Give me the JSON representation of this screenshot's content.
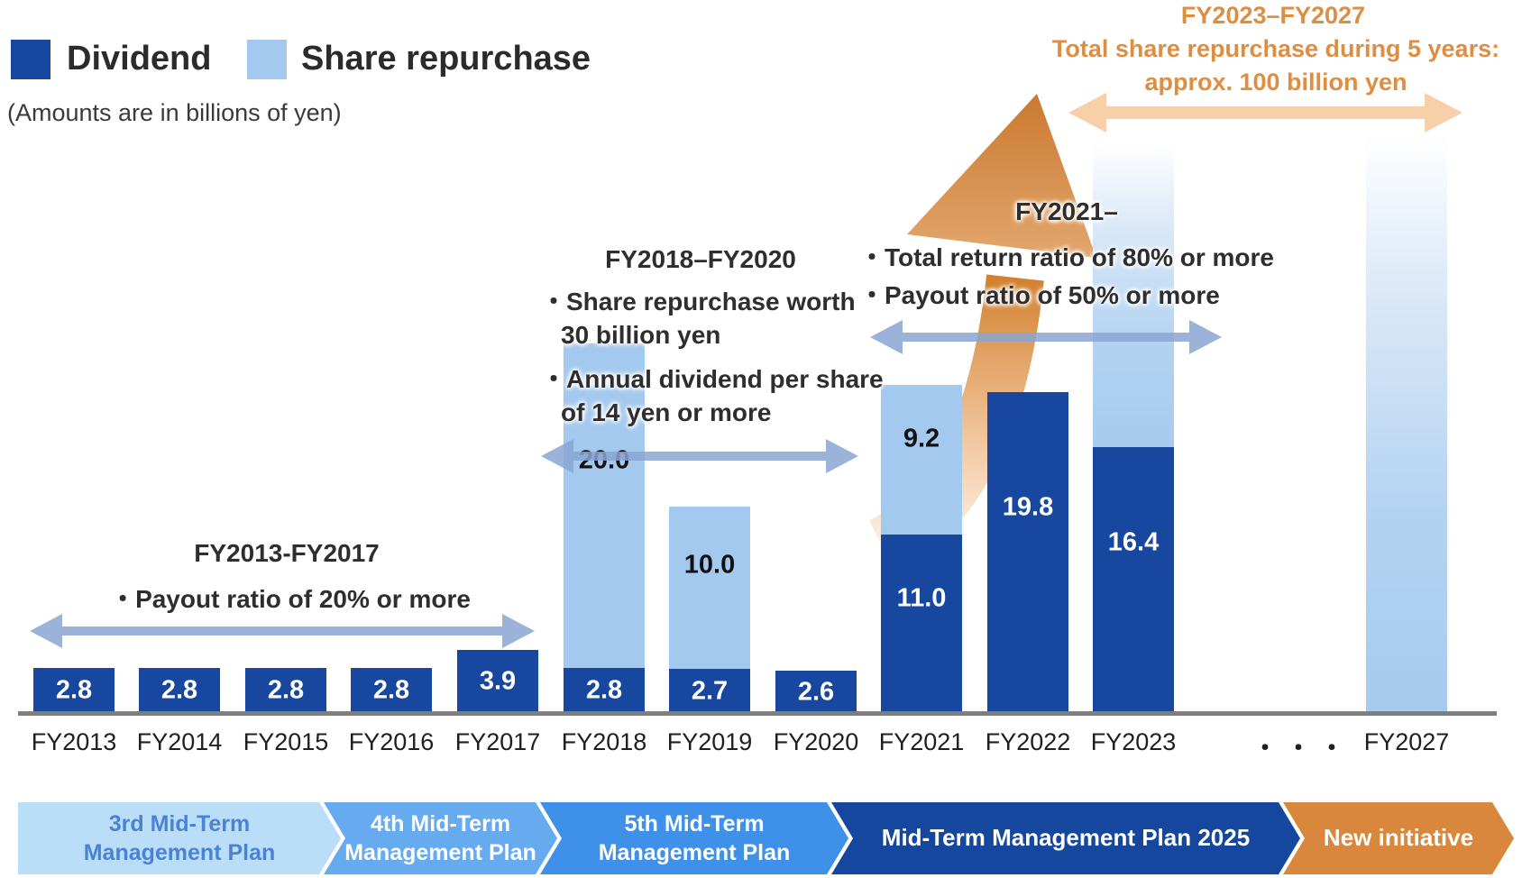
{
  "legend": {
    "items": [
      {
        "label": "Dividend",
        "color": "#17479f"
      },
      {
        "label": "Share repurchase",
        "color": "#a4c9ee"
      }
    ]
  },
  "note": "(Amounts are in billions of yen)",
  "callouts": {
    "fy2023_27": {
      "color": "#dd8e41",
      "lines": [
        "FY2023–FY2027",
        "Total share repurchase during 5 years:",
        "approx. 100 billion yen"
      ]
    },
    "fy2013_17": {
      "title": "FY2013-FY2017",
      "bullets": [
        "・Payout ratio of 20% or more"
      ]
    },
    "fy2018_20": {
      "title": "FY2018–FY2020",
      "bullets": [
        "・Share repurchase worth",
        "30 billion yen",
        "・Annual dividend per share",
        "of 14 yen or more"
      ]
    },
    "fy2021": {
      "title": "FY2021–",
      "bullets": [
        "・Total return ratio of 80% or more",
        "・Payout ratio of 50% or more"
      ]
    }
  },
  "chart_data": {
    "type": "bar",
    "stacked": true,
    "unit": "billions of yen",
    "categories": [
      "FY2013",
      "FY2014",
      "FY2015",
      "FY2016",
      "FY2017",
      "FY2018",
      "FY2019",
      "FY2020",
      "FY2021",
      "FY2022",
      "FY2023",
      "・・・",
      "FY2027"
    ],
    "series": [
      {
        "name": "Dividend",
        "color": "#17479f",
        "label_color": "#ffffff",
        "values": [
          2.8,
          2.8,
          2.8,
          2.8,
          3.9,
          2.8,
          2.7,
          2.6,
          11.0,
          19.8,
          16.4,
          null,
          null
        ]
      },
      {
        "name": "Share repurchase",
        "color": "#a4c9ee",
        "label_color": "#111111",
        "values": [
          null,
          null,
          null,
          null,
          null,
          20.0,
          10.0,
          null,
          9.2,
          null,
          null,
          null,
          null
        ]
      }
    ],
    "planned_bars": [
      {
        "category": "FY2023",
        "note": "share repurchase shown as unlabeled gradient column above dividend bar"
      },
      {
        "category": "FY2027",
        "note": "full-height unlabeled gradient column (planned repurchase)"
      }
    ],
    "ylim": [
      0,
      24
    ],
    "grid": false,
    "legend_position": "top-left"
  },
  "timeline": {
    "segments": [
      {
        "label_line1": "3rd Mid-Term",
        "label_line2": "Management Plan",
        "bg": "#baddf8",
        "text_color": "#4a82d8"
      },
      {
        "label_line1": "4th Mid-Term",
        "label_line2": "Management Plan",
        "bg": "#66abf0",
        "text_color": "#ffffff"
      },
      {
        "label_line1": "5th Mid-Term",
        "label_line2": "Management Plan",
        "bg": "#3f90e8",
        "text_color": "#ffffff"
      },
      {
        "label_line1": "Mid-Term Management Plan 2025",
        "label_line2": "",
        "bg": "#16479e",
        "text_color": "#ffffff"
      },
      {
        "label_line1": "New initiative",
        "label_line2": "",
        "bg": "#d8873c",
        "text_color": "#ffffff"
      }
    ]
  }
}
